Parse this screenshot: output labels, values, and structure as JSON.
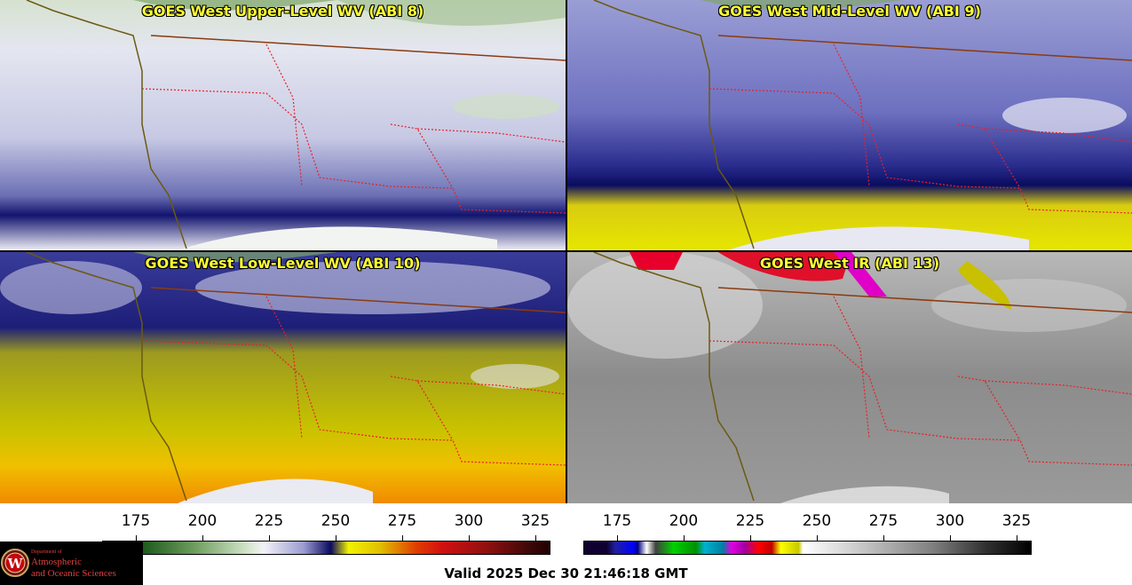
{
  "panels": [
    {
      "title": "GOES West Upper-Level WV (ABI 8)"
    },
    {
      "title": "GOES West Mid-Level WV (ABI 9)"
    },
    {
      "title": "GOES West Low-Level WV (ABI 10)"
    },
    {
      "title": "GOES West IR (ABI 13)"
    }
  ],
  "colorbars": {
    "wv": {
      "ticks": [
        "175",
        "200",
        "225",
        "250",
        "275",
        "300",
        "325"
      ]
    },
    "ir": {
      "ticks": [
        "175",
        "200",
        "225",
        "250",
        "275",
        "300",
        "325"
      ]
    }
  },
  "valid_time": "Valid 2025 Dec 30 21:46:18 GMT",
  "logo": {
    "line1": "Department of",
    "line2": "Atmospheric",
    "line3": "and Oceanic Sciences",
    "letter": "W"
  },
  "colors": {
    "border_state": "#e8202a",
    "border_country": "#8b3a10",
    "coastline": "#6b5a10",
    "title_text": "#ffff33"
  }
}
